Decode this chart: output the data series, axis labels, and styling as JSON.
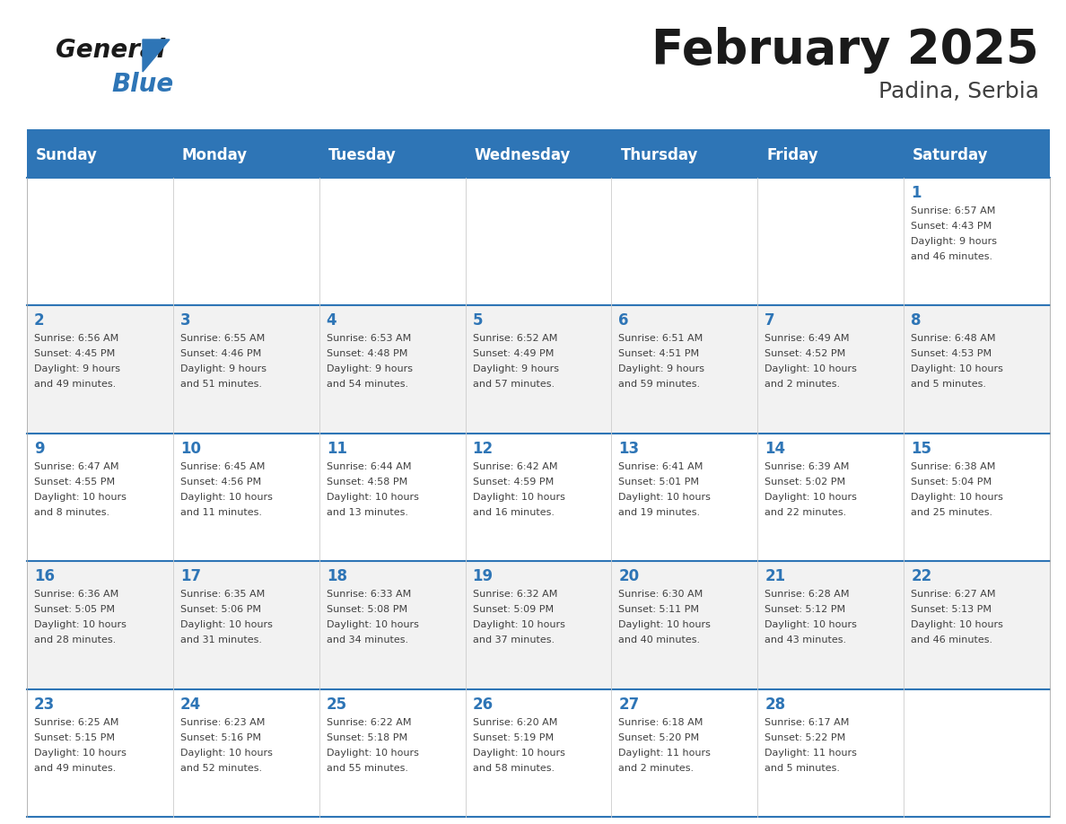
{
  "title": "February 2025",
  "subtitle": "Padina, Serbia",
  "header_bg_color": "#2E75B6",
  "header_text_color": "#FFFFFF",
  "day_names": [
    "Sunday",
    "Monday",
    "Tuesday",
    "Wednesday",
    "Thursday",
    "Friday",
    "Saturday"
  ],
  "cell_bg_light": "#F2F2F2",
  "cell_bg_white": "#FFFFFF",
  "cell_border_color": "#2E75B6",
  "day_number_color": "#2E75B6",
  "info_text_color": "#404040",
  "title_color": "#1A1A1A",
  "subtitle_color": "#404040",
  "logo_general_color": "#1A1A1A",
  "logo_blue_color": "#2E75B6",
  "logo_triangle_color": "#2E75B6",
  "days_data": [
    {
      "day": 1,
      "col": 6,
      "row": 0,
      "sunrise": "6:57 AM",
      "sunset": "4:43 PM",
      "daylight": "9 hours and 46 minutes."
    },
    {
      "day": 2,
      "col": 0,
      "row": 1,
      "sunrise": "6:56 AM",
      "sunset": "4:45 PM",
      "daylight": "9 hours and 49 minutes."
    },
    {
      "day": 3,
      "col": 1,
      "row": 1,
      "sunrise": "6:55 AM",
      "sunset": "4:46 PM",
      "daylight": "9 hours and 51 minutes."
    },
    {
      "day": 4,
      "col": 2,
      "row": 1,
      "sunrise": "6:53 AM",
      "sunset": "4:48 PM",
      "daylight": "9 hours and 54 minutes."
    },
    {
      "day": 5,
      "col": 3,
      "row": 1,
      "sunrise": "6:52 AM",
      "sunset": "4:49 PM",
      "daylight": "9 hours and 57 minutes."
    },
    {
      "day": 6,
      "col": 4,
      "row": 1,
      "sunrise": "6:51 AM",
      "sunset": "4:51 PM",
      "daylight": "9 hours and 59 minutes."
    },
    {
      "day": 7,
      "col": 5,
      "row": 1,
      "sunrise": "6:49 AM",
      "sunset": "4:52 PM",
      "daylight": "10 hours and 2 minutes."
    },
    {
      "day": 8,
      "col": 6,
      "row": 1,
      "sunrise": "6:48 AM",
      "sunset": "4:53 PM",
      "daylight": "10 hours and 5 minutes."
    },
    {
      "day": 9,
      "col": 0,
      "row": 2,
      "sunrise": "6:47 AM",
      "sunset": "4:55 PM",
      "daylight": "10 hours and 8 minutes."
    },
    {
      "day": 10,
      "col": 1,
      "row": 2,
      "sunrise": "6:45 AM",
      "sunset": "4:56 PM",
      "daylight": "10 hours and 11 minutes."
    },
    {
      "day": 11,
      "col": 2,
      "row": 2,
      "sunrise": "6:44 AM",
      "sunset": "4:58 PM",
      "daylight": "10 hours and 13 minutes."
    },
    {
      "day": 12,
      "col": 3,
      "row": 2,
      "sunrise": "6:42 AM",
      "sunset": "4:59 PM",
      "daylight": "10 hours and 16 minutes."
    },
    {
      "day": 13,
      "col": 4,
      "row": 2,
      "sunrise": "6:41 AM",
      "sunset": "5:01 PM",
      "daylight": "10 hours and 19 minutes."
    },
    {
      "day": 14,
      "col": 5,
      "row": 2,
      "sunrise": "6:39 AM",
      "sunset": "5:02 PM",
      "daylight": "10 hours and 22 minutes."
    },
    {
      "day": 15,
      "col": 6,
      "row": 2,
      "sunrise": "6:38 AM",
      "sunset": "5:04 PM",
      "daylight": "10 hours and 25 minutes."
    },
    {
      "day": 16,
      "col": 0,
      "row": 3,
      "sunrise": "6:36 AM",
      "sunset": "5:05 PM",
      "daylight": "10 hours and 28 minutes."
    },
    {
      "day": 17,
      "col": 1,
      "row": 3,
      "sunrise": "6:35 AM",
      "sunset": "5:06 PM",
      "daylight": "10 hours and 31 minutes."
    },
    {
      "day": 18,
      "col": 2,
      "row": 3,
      "sunrise": "6:33 AM",
      "sunset": "5:08 PM",
      "daylight": "10 hours and 34 minutes."
    },
    {
      "day": 19,
      "col": 3,
      "row": 3,
      "sunrise": "6:32 AM",
      "sunset": "5:09 PM",
      "daylight": "10 hours and 37 minutes."
    },
    {
      "day": 20,
      "col": 4,
      "row": 3,
      "sunrise": "6:30 AM",
      "sunset": "5:11 PM",
      "daylight": "10 hours and 40 minutes."
    },
    {
      "day": 21,
      "col": 5,
      "row": 3,
      "sunrise": "6:28 AM",
      "sunset": "5:12 PM",
      "daylight": "10 hours and 43 minutes."
    },
    {
      "day": 22,
      "col": 6,
      "row": 3,
      "sunrise": "6:27 AM",
      "sunset": "5:13 PM",
      "daylight": "10 hours and 46 minutes."
    },
    {
      "day": 23,
      "col": 0,
      "row": 4,
      "sunrise": "6:25 AM",
      "sunset": "5:15 PM",
      "daylight": "10 hours and 49 minutes."
    },
    {
      "day": 24,
      "col": 1,
      "row": 4,
      "sunrise": "6:23 AM",
      "sunset": "5:16 PM",
      "daylight": "10 hours and 52 minutes."
    },
    {
      "day": 25,
      "col": 2,
      "row": 4,
      "sunrise": "6:22 AM",
      "sunset": "5:18 PM",
      "daylight": "10 hours and 55 minutes."
    },
    {
      "day": 26,
      "col": 3,
      "row": 4,
      "sunrise": "6:20 AM",
      "sunset": "5:19 PM",
      "daylight": "10 hours and 58 minutes."
    },
    {
      "day": 27,
      "col": 4,
      "row": 4,
      "sunrise": "6:18 AM",
      "sunset": "5:20 PM",
      "daylight": "11 hours and 2 minutes."
    },
    {
      "day": 28,
      "col": 5,
      "row": 4,
      "sunrise": "6:17 AM",
      "sunset": "5:22 PM",
      "daylight": "11 hours and 5 minutes."
    }
  ]
}
